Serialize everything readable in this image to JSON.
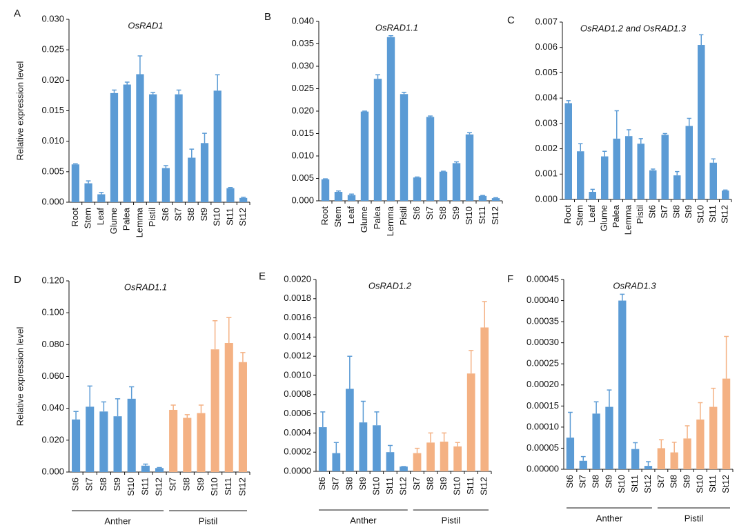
{
  "chart_data": [
    {
      "type": "bar",
      "panel": "A",
      "title": "OsRAD1",
      "ylabel": "Relative expression level",
      "color": "#5b9bd5",
      "categories": [
        "Root",
        "Stem",
        "Leaf",
        "Glume",
        "Palea",
        "Lemma",
        "Pistil",
        "St6",
        "St7",
        "St8",
        "St9",
        "St10",
        "St11",
        "St12"
      ],
      "values": [
        0.0062,
        0.0031,
        0.0013,
        0.0179,
        0.0193,
        0.021,
        0.0177,
        0.0056,
        0.0177,
        0.0073,
        0.0097,
        0.0183,
        0.0023,
        0.0007
      ],
      "errors": [
        0.0001,
        0.0004,
        0.0003,
        0.0005,
        0.0004,
        0.003,
        0.0003,
        0.0004,
        0.0007,
        0.0014,
        0.0016,
        0.0026,
        0.0001,
        0.0001
      ],
      "ylim": [
        0,
        0.03
      ],
      "yticks": [
        {
          "value": 0,
          "label": "0.000"
        },
        {
          "value": 0.005,
          "label": "0.005"
        },
        {
          "value": 0.01,
          "label": "0.010"
        },
        {
          "value": 0.015,
          "label": "0.015"
        },
        {
          "value": 0.02,
          "label": "0.020"
        },
        {
          "value": 0.025,
          "label": "0.025"
        },
        {
          "value": 0.03,
          "label": "0.030"
        }
      ]
    },
    {
      "type": "bar",
      "panel": "B",
      "title": "OsRAD1.1",
      "color": "#5b9bd5",
      "categories": [
        "Root",
        "Stem",
        "Leaf",
        "Glume",
        "Palea",
        "Lemma",
        "Pistil",
        "St6",
        "St7",
        "St8",
        "St9",
        "St10",
        "St11",
        "St12"
      ],
      "values": [
        0.0048,
        0.002,
        0.0013,
        0.0199,
        0.0272,
        0.0365,
        0.0238,
        0.0052,
        0.0187,
        0.0065,
        0.0084,
        0.0148,
        0.0011,
        0.0006
      ],
      "errors": [
        0.0001,
        0.0002,
        0.0002,
        0.0001,
        0.0009,
        0.0003,
        0.0004,
        0.0001,
        0.0002,
        0.0001,
        0.0003,
        0.0004,
        0.0001,
        0.0001
      ],
      "ylim": [
        0,
        0.04
      ],
      "yticks": [
        {
          "value": 0,
          "label": "0.000"
        },
        {
          "value": 0.005,
          "label": "0.005"
        },
        {
          "value": 0.01,
          "label": "0.010"
        },
        {
          "value": 0.015,
          "label": "0.015"
        },
        {
          "value": 0.02,
          "label": "0.020"
        },
        {
          "value": 0.025,
          "label": "0.025"
        },
        {
          "value": 0.03,
          "label": "0.030"
        },
        {
          "value": 0.035,
          "label": "0.035"
        },
        {
          "value": 0.04,
          "label": "0.040"
        }
      ]
    },
    {
      "type": "bar",
      "panel": "C",
      "title": "OsRAD1.2 and OsRAD1.3",
      "color": "#5b9bd5",
      "categories": [
        "Root",
        "Stem",
        "Leaf",
        "Glume",
        "Palea",
        "Lemma",
        "Pistil",
        "St6",
        "St7",
        "St8",
        "St9",
        "St10",
        "St11",
        "St12"
      ],
      "values": [
        0.0038,
        0.0019,
        0.0003,
        0.0017,
        0.0024,
        0.0025,
        0.0022,
        0.00115,
        0.00255,
        0.00095,
        0.0029,
        0.0061,
        0.00145,
        0.00035
      ],
      "errors": [
        0.0001,
        0.0003,
        0.0001,
        0.0002,
        0.0011,
        0.00025,
        0.0002,
        5e-05,
        5e-05,
        0.00015,
        0.0003,
        0.0004,
        0.00015,
        2e-05
      ],
      "ylim": [
        0,
        0.007
      ],
      "yticks": [
        {
          "value": 0,
          "label": "0.000"
        },
        {
          "value": 0.001,
          "label": "0.001"
        },
        {
          "value": 0.002,
          "label": "0.002"
        },
        {
          "value": 0.003,
          "label": "0.003"
        },
        {
          "value": 0.004,
          "label": "0.004"
        },
        {
          "value": 0.005,
          "label": "0.005"
        },
        {
          "value": 0.006,
          "label": "0.006"
        },
        {
          "value": 0.007,
          "label": "0.007"
        }
      ]
    },
    {
      "type": "grouped",
      "panel": "D",
      "title": "OsRAD1.1",
      "ylabel": "Relative expression level",
      "groups": [
        {
          "name": "Anther",
          "color": "#5b9bd5",
          "categories": [
            "St6",
            "St7",
            "St8",
            "St9",
            "St10",
            "St11",
            "St12"
          ],
          "values": [
            0.033,
            0.041,
            0.038,
            0.035,
            0.046,
            0.004,
            0.0025
          ],
          "errors": [
            0.005,
            0.013,
            0.006,
            0.011,
            0.0075,
            0.001,
            0.0003
          ]
        },
        {
          "name": "Pistil",
          "color": "#f4b183",
          "categories": [
            "St7",
            "St8",
            "St9",
            "St10",
            "St11",
            "St12"
          ],
          "values": [
            0.039,
            0.034,
            0.037,
            0.077,
            0.081,
            0.069
          ],
          "errors": [
            0.003,
            0.002,
            0.005,
            0.018,
            0.016,
            0.006
          ]
        }
      ],
      "ylim": [
        0,
        0.12
      ],
      "yticks": [
        {
          "value": 0,
          "label": "0.000"
        },
        {
          "value": 0.02,
          "label": "0.020"
        },
        {
          "value": 0.04,
          "label": "0.040"
        },
        {
          "value": 0.06,
          "label": "0.060"
        },
        {
          "value": 0.08,
          "label": "0.080"
        },
        {
          "value": 0.1,
          "label": "0.100"
        },
        {
          "value": 0.12,
          "label": "0.120"
        }
      ]
    },
    {
      "type": "grouped",
      "panel": "E",
      "title": "OsRAD1.2",
      "groups": [
        {
          "name": "Anther",
          "color": "#5b9bd5",
          "categories": [
            "St6",
            "St7",
            "St8",
            "St9",
            "St10",
            "St11",
            "St12"
          ],
          "values": [
            0.00046,
            0.00019,
            0.00086,
            0.00051,
            0.00048,
            0.0002,
            5e-05
          ],
          "errors": [
            0.00016,
            0.00011,
            0.00034,
            0.00022,
            0.00014,
            7e-05,
            0
          ]
        },
        {
          "name": "Pistil",
          "color": "#f4b183",
          "categories": [
            "St7",
            "St8",
            "St9",
            "St10",
            "St11",
            "St12"
          ],
          "values": [
            0.00019,
            0.0003,
            0.00031,
            0.00026,
            0.00102,
            0.0015
          ],
          "errors": [
            5e-05,
            0.0001,
            9e-05,
            4e-05,
            0.00024,
            0.00027
          ]
        }
      ],
      "ylim": [
        0,
        0.002
      ],
      "yticks": [
        {
          "value": 0,
          "label": "0.0000"
        },
        {
          "value": 0.0002,
          "label": "0.0002"
        },
        {
          "value": 0.0004,
          "label": "0.0004"
        },
        {
          "value": 0.0006,
          "label": "0.0006"
        },
        {
          "value": 0.0008,
          "label": "0.0008"
        },
        {
          "value": 0.001,
          "label": "0.0010"
        },
        {
          "value": 0.0012,
          "label": "0.0012"
        },
        {
          "value": 0.0014,
          "label": "0.0014"
        },
        {
          "value": 0.0016,
          "label": "0.0016"
        },
        {
          "value": 0.0018,
          "label": "0.0018"
        },
        {
          "value": 0.002,
          "label": "0.0020"
        }
      ]
    },
    {
      "type": "grouped",
      "panel": "F",
      "title": "OsRAD1.3",
      "groups": [
        {
          "name": "Anther",
          "color": "#5b9bd5",
          "categories": [
            "St6",
            "St7",
            "St8",
            "St9",
            "St10",
            "St11",
            "St12"
          ],
          "values": [
            7.5e-05,
            2e-05,
            0.000132,
            0.000148,
            0.0004,
            4.8e-05,
            8e-06
          ],
          "errors": [
            6e-05,
            1e-05,
            2.8e-05,
            4e-05,
            1.5e-05,
            1.5e-05,
            1e-05
          ]
        },
        {
          "name": "Pistil",
          "color": "#f4b183",
          "categories": [
            "St7",
            "St8",
            "St9",
            "St10",
            "St11",
            "St12"
          ],
          "values": [
            5e-05,
            4e-05,
            7.3e-05,
            0.000118,
            0.000148,
            0.000215
          ],
          "errors": [
            2e-05,
            2.4e-05,
            3e-05,
            4e-05,
            4.4e-05,
            0.0001
          ]
        }
      ],
      "ylim": [
        0,
        0.00045
      ],
      "yticks": [
        {
          "value": 0,
          "label": "0.00000"
        },
        {
          "value": 5e-05,
          "label": "0.00005"
        },
        {
          "value": 0.0001,
          "label": "0.00010"
        },
        {
          "value": 0.00015,
          "label": "0.00015"
        },
        {
          "value": 0.0002,
          "label": "0.00020"
        },
        {
          "value": 0.00025,
          "label": "0.00025"
        },
        {
          "value": 0.0003,
          "label": "0.00030"
        },
        {
          "value": 0.00035,
          "label": "0.00035"
        },
        {
          "value": 0.0004,
          "label": "0.00040"
        },
        {
          "value": 0.00045,
          "label": "0.00045"
        }
      ]
    }
  ]
}
